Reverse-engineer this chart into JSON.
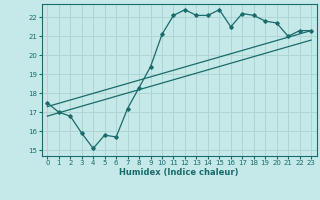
{
  "xlabel": "Humidex (Indice chaleur)",
  "xlim": [
    -0.5,
    23.5
  ],
  "ylim": [
    14.7,
    22.7
  ],
  "yticks": [
    15,
    16,
    17,
    18,
    19,
    20,
    21,
    22
  ],
  "xticks": [
    0,
    1,
    2,
    3,
    4,
    5,
    6,
    7,
    8,
    9,
    10,
    11,
    12,
    13,
    14,
    15,
    16,
    17,
    18,
    19,
    20,
    21,
    22,
    23
  ],
  "bg_color": "#c5e8e8",
  "grid_color": "#aed4d4",
  "line_color": "#1a6b6b",
  "series1_x": [
    0,
    1,
    2,
    3,
    4,
    5,
    6,
    7,
    8,
    9,
    10,
    11,
    12,
    13,
    14,
    15,
    16,
    17,
    18,
    19,
    20,
    21,
    22,
    23
  ],
  "series1_y": [
    17.5,
    17.0,
    16.8,
    15.9,
    15.1,
    15.8,
    15.7,
    17.2,
    18.3,
    19.4,
    21.1,
    22.1,
    22.4,
    22.1,
    22.1,
    22.4,
    21.5,
    22.2,
    22.1,
    21.8,
    21.7,
    21.0,
    21.3,
    21.3
  ],
  "series2_x": [
    0,
    23
  ],
  "series2_y": [
    17.3,
    21.3
  ],
  "series3_x": [
    0,
    23
  ],
  "series3_y": [
    16.8,
    20.8
  ]
}
